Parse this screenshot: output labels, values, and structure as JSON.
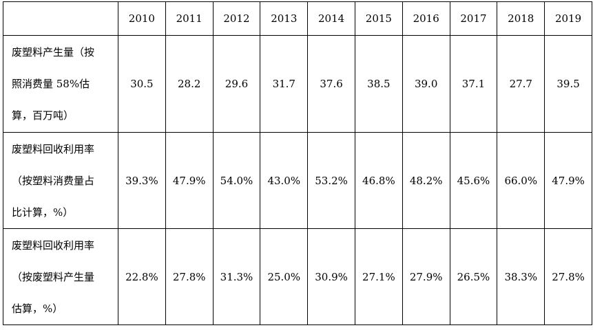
{
  "table": {
    "corner": "",
    "years": [
      "2010",
      "2011",
      "2012",
      "2013",
      "2014",
      "2015",
      "2016",
      "2017",
      "2018",
      "2019"
    ],
    "rows": [
      {
        "label_lines": [
          "废塑料产生量（按",
          "照消费量 58%估",
          "算，百万吨）"
        ],
        "values": [
          "30.5",
          "28.2",
          "29.6",
          "31.7",
          "37.6",
          "38.5",
          "39.0",
          "37.1",
          "27.7",
          "39.5"
        ]
      },
      {
        "label_lines": [
          "废塑料回收利用率",
          "（按塑料消费量占",
          "比计算，%）"
        ],
        "values": [
          "39.3%",
          "47.9%",
          "54.0%",
          "43.0%",
          "53.2%",
          "46.8%",
          "48.2%",
          "45.6%",
          "66.0%",
          "47.9%"
        ]
      },
      {
        "label_lines": [
          "废塑料回收利用率",
          "（按废塑料产生量",
          "估算，%）"
        ],
        "values": [
          "22.8%",
          "27.8%",
          "31.3%",
          "25.0%",
          "30.9%",
          "27.1%",
          "27.9%",
          "26.5%",
          "38.3%",
          "27.8%"
        ]
      }
    ]
  }
}
